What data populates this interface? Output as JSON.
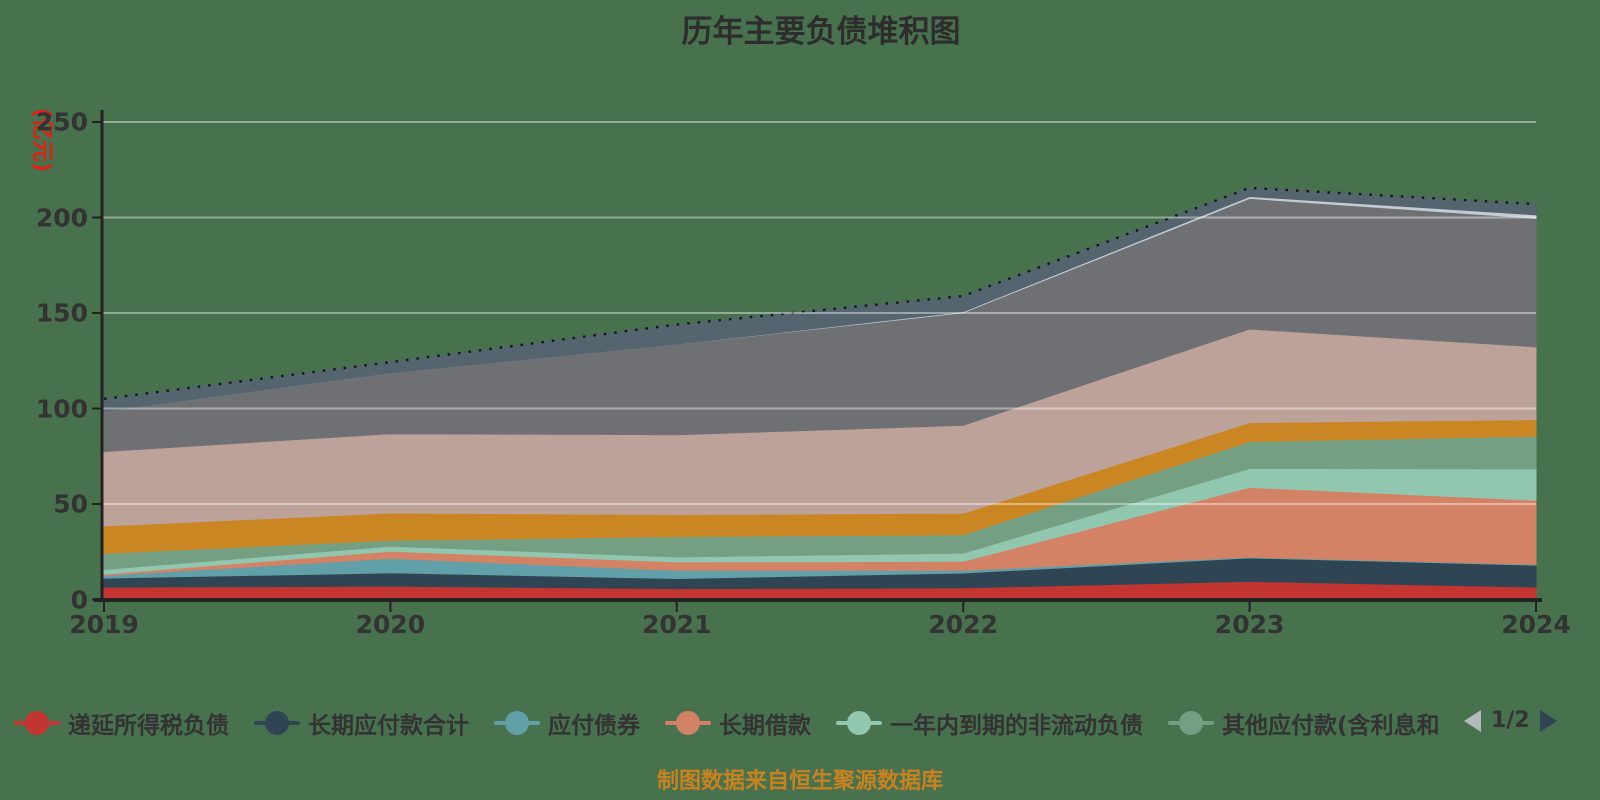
{
  "title": "历年主要负债堆积图",
  "caption": "制图数据来自恒生聚源数据库",
  "y_axis": {
    "name": "(亿元)",
    "name_color": "#dc2316",
    "ticks": [
      "0",
      "50",
      "100",
      "150",
      "200",
      "250"
    ],
    "min": 0,
    "max": 250
  },
  "x_axis": {
    "ticks": [
      "2019",
      "2020",
      "2021",
      "2022",
      "2023",
      "2024"
    ]
  },
  "legend": {
    "items": [
      {
        "label": "递延所得税负债",
        "color": "#c23531"
      },
      {
        "label": "长期应付款合计",
        "color": "#2f4554"
      },
      {
        "label": "应付债券",
        "color": "#61a0a8"
      },
      {
        "label": "长期借款",
        "color": "#d48265"
      },
      {
        "label": "一年内到期的非流动负债",
        "color": "#91c7ae"
      },
      {
        "label": "其他应付款(含利息和",
        "color": "#749f83"
      }
    ],
    "pager": {
      "label": "1/2",
      "prev_color": "#b4b9be",
      "next_color": "#2f4554"
    }
  },
  "colors": {
    "background": "#48714d",
    "text": "#333333",
    "axis": "#222222",
    "grid": "rgba(255,255,255,0.42)",
    "envelope_dots": "#151515"
  },
  "chart_data": {
    "type": "area",
    "stacked": true,
    "title": "历年主要负债堆积图",
    "ylabel": "(亿元)",
    "ylim": [
      0,
      250
    ],
    "grid": true,
    "legend_position": "bottom",
    "x": [
      2019,
      2020,
      2021,
      2022,
      2023,
      2024
    ],
    "series": [
      {
        "label": "递延所得税负债",
        "color": "#c23531",
        "values": [
          6.5,
          7.0,
          5.7,
          6.1,
          9.5,
          6.5
        ]
      },
      {
        "label": "长期应付款合计",
        "color": "#2f4554",
        "values": [
          4.7,
          7.0,
          5.3,
          7.8,
          12.3,
          11.5
        ]
      },
      {
        "label": "应付债券",
        "color": "#61a0a8",
        "values": [
          1.4,
          7.5,
          4.3,
          1.4,
          0.4,
          0.4
        ]
      },
      {
        "label": "长期借款",
        "color": "#d48265",
        "values": [
          0.7,
          3.8,
          4.4,
          4.7,
          36.5,
          33.6
        ]
      },
      {
        "label": "一年内到期的非流动负债",
        "color": "#91c7ae",
        "values": [
          2.4,
          2.6,
          2.6,
          4.3,
          9.9,
          16.5
        ]
      },
      {
        "label": "其他应付款(含利息和",
        "color": "#749f83",
        "values": [
          8.5,
          3.1,
          10.7,
          9.6,
          14.1,
          17.0
        ]
      },
      {
        "label": "",
        "color": "#ca8622",
        "values": [
          14.3,
          14.3,
          11.5,
          11.3,
          9.9,
          8.7
        ]
      },
      {
        "label": "",
        "color": "#bda29a",
        "values": [
          39.0,
          41.5,
          41.8,
          46.0,
          49.0,
          38.1
        ]
      },
      {
        "label": "",
        "color": "#6e7074",
        "values": [
          21.0,
          31.8,
          47.3,
          59.0,
          68.4,
          67.3
        ]
      },
      {
        "label": "",
        "color": "#c4ccd3",
        "values": [
          0.0,
          0.0,
          0.0,
          0.5,
          1.0,
          1.8
        ]
      },
      {
        "label": "",
        "color": "#546570",
        "values": [
          6.5,
          5.7,
          10.4,
          8.2,
          4.5,
          5.6
        ]
      }
    ]
  }
}
